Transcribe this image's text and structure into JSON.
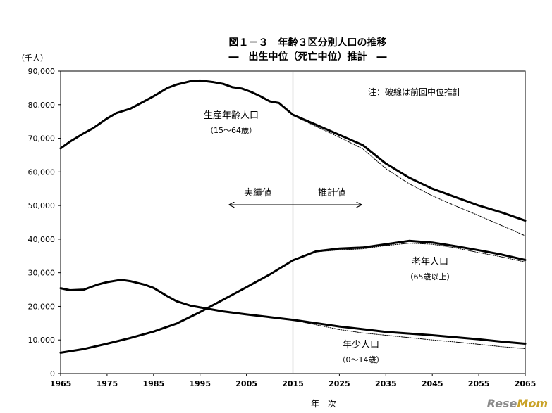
{
  "chart_data": {
    "type": "line",
    "title": "図１－３　年齢３区分別人口の推移",
    "subtitle": "―　出生中位（死亡中位）推計　―",
    "unit_label": "（千人）",
    "xlabel": "年　次",
    "ylabel": "",
    "xlim": [
      1965,
      2065
    ],
    "ylim": [
      0,
      90000
    ],
    "x_ticks": [
      1965,
      1975,
      1985,
      1995,
      2005,
      2015,
      2025,
      2035,
      2045,
      2055,
      2065
    ],
    "y_ticks": [
      0,
      10000,
      20000,
      30000,
      40000,
      50000,
      60000,
      70000,
      80000,
      90000
    ],
    "y_tick_labels": [
      "0",
      "10,000",
      "20,000",
      "30,000",
      "40,000",
      "50,000",
      "60,000",
      "70,000",
      "80,000",
      "90,000"
    ],
    "grid": false,
    "divider_year": 2015,
    "note": "注：破線は前回中位推計",
    "actual_label": "実績値",
    "projection_label": "推計値",
    "series": [
      {
        "name": "生産年齢人口",
        "sublabel": "（15～64歳）",
        "style": "solid",
        "x": [
          1965,
          1967,
          1970,
          1972,
          1975,
          1977,
          1980,
          1983,
          1985,
          1988,
          1990,
          1993,
          1995,
          1998,
          2000,
          2002,
          2004,
          2006,
          2008,
          2010,
          2012,
          2015,
          2020,
          2025,
          2030,
          2035,
          2040,
          2045,
          2050,
          2055,
          2060,
          2065
        ],
        "values": [
          67000,
          69000,
          71500,
          73000,
          75900,
          77500,
          78800,
          81000,
          82500,
          85000,
          86000,
          87000,
          87200,
          86700,
          86200,
          85200,
          84800,
          83800,
          82500,
          81000,
          80500,
          77000,
          74000,
          71000,
          68000,
          62500,
          58300,
          55000,
          52500,
          50000,
          47900,
          45500
        ]
      },
      {
        "name": "生産年齢人口（前回推計）",
        "style": "dotted",
        "x": [
          2015,
          2020,
          2025,
          2030,
          2035,
          2040,
          2045,
          2050,
          2055,
          2060,
          2065
        ],
        "values": [
          76800,
          73500,
          70300,
          66900,
          61000,
          56500,
          52900,
          49900,
          47000,
          44000,
          41000
        ]
      },
      {
        "name": "老年人口",
        "sublabel": "（65歳以上）",
        "style": "solid",
        "x": [
          1965,
          1970,
          1975,
          1980,
          1985,
          1990,
          1995,
          2000,
          2005,
          2010,
          2015,
          2020,
          2025,
          2030,
          2035,
          2040,
          2045,
          2050,
          2055,
          2060,
          2065
        ],
        "values": [
          6200,
          7300,
          8900,
          10600,
          12500,
          14900,
          18300,
          22000,
          25700,
          29500,
          33700,
          36400,
          37200,
          37500,
          38500,
          39500,
          39000,
          37900,
          36700,
          35400,
          33800
        ]
      },
      {
        "name": "老年人口（前回推計）",
        "style": "dotted",
        "x": [
          2015,
          2020,
          2025,
          2030,
          2035,
          2040,
          2045,
          2050,
          2055,
          2060,
          2065
        ],
        "values": [
          33900,
          36200,
          36800,
          37100,
          38100,
          38800,
          38500,
          37400,
          36000,
          34700,
          33200
        ]
      },
      {
        "name": "年少人口",
        "sublabel": "（0～14歳）",
        "style": "solid",
        "x": [
          1965,
          1967,
          1970,
          1973,
          1975,
          1978,
          1980,
          1983,
          1985,
          1988,
          1990,
          1993,
          1995,
          2000,
          2005,
          2010,
          2015,
          2020,
          2025,
          2030,
          2035,
          2040,
          2045,
          2050,
          2055,
          2060,
          2065
        ],
        "values": [
          25400,
          24800,
          25000,
          26500,
          27200,
          27900,
          27500,
          26500,
          25500,
          23000,
          21500,
          20200,
          19700,
          18500,
          17600,
          16800,
          16000,
          15000,
          14000,
          13200,
          12400,
          11900,
          11400,
          10800,
          10200,
          9500,
          8900
        ]
      },
      {
        "name": "年少人口（前回推計）",
        "style": "dotted",
        "x": [
          2015,
          2020,
          2025,
          2030,
          2035,
          2040,
          2045,
          2050,
          2055,
          2060,
          2065
        ],
        "values": [
          15900,
          14500,
          13100,
          12100,
          11400,
          10700,
          10000,
          9400,
          8700,
          8000,
          7400
        ]
      }
    ]
  },
  "watermark": {
    "text_a": "Rese",
    "text_b": "Mom"
  }
}
